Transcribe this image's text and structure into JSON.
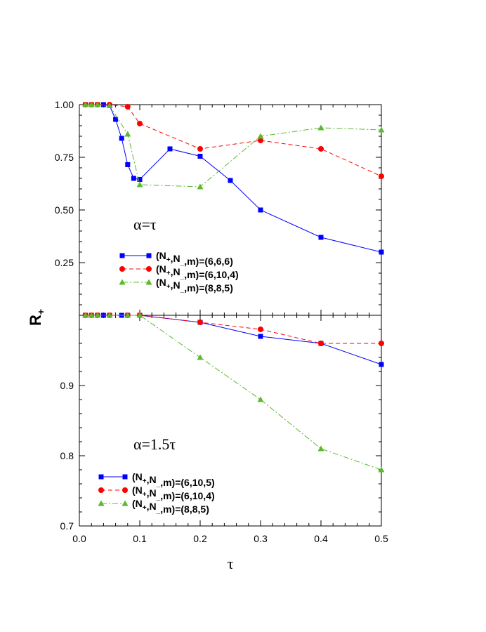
{
  "chart_data": {
    "type": "line",
    "ylabel": "R+",
    "xlabel": "τ",
    "xlim": [
      0.0,
      0.5
    ],
    "x_ticks": [
      "0.0",
      "0.1",
      "0.2",
      "0.3",
      "0.4",
      "0.5"
    ],
    "panels": [
      {
        "annotation": "α=τ",
        "ylim": [
          0.0,
          1.0
        ],
        "y_ticks": [
          "0.25",
          "0.50",
          "0.75",
          "1.00"
        ],
        "legend_position": "lower-left",
        "series": [
          {
            "name": "(N+,N_,m)=(6,6,6)",
            "color": "#0000ff",
            "marker": "square",
            "dash": "solid",
            "x": [
              0.01,
              0.02,
              0.03,
              0.04,
              0.05,
              0.06,
              0.07,
              0.08,
              0.09,
              0.1,
              0.15,
              0.2,
              0.25,
              0.3,
              0.4,
              0.5
            ],
            "y": [
              1.0,
              1.0,
              1.0,
              1.0,
              0.995,
              0.93,
              0.84,
              0.715,
              0.65,
              0.645,
              0.79,
              0.755,
              0.64,
              0.5,
              0.37,
              0.3
            ]
          },
          {
            "name": "(N+,N_,m)=(6,10,4)",
            "color": "#ff0000",
            "marker": "circle",
            "dash": "dashed",
            "x": [
              0.01,
              0.02,
              0.03,
              0.05,
              0.08,
              0.1,
              0.2,
              0.3,
              0.4,
              0.5
            ],
            "y": [
              1.0,
              1.0,
              1.0,
              1.0,
              0.99,
              0.91,
              0.79,
              0.83,
              0.79,
              0.66
            ]
          },
          {
            "name": "(N+,N_,m)=(8,8,5)",
            "color": "#5cb82e",
            "marker": "triangle",
            "dash": "dashdot",
            "x": [
              0.01,
              0.02,
              0.03,
              0.05,
              0.08,
              0.1,
              0.2,
              0.3,
              0.4,
              0.5
            ],
            "y": [
              1.0,
              1.0,
              1.0,
              0.995,
              0.86,
              0.62,
              0.61,
              0.85,
              0.89,
              0.88
            ]
          }
        ]
      },
      {
        "annotation": "α=1.5τ",
        "ylim": [
          0.7,
          1.0
        ],
        "y_ticks": [
          "0.7",
          "0.8",
          "0.9"
        ],
        "legend_position": "lower-left",
        "series": [
          {
            "name": "(N+,N_,m)=(6,10,5)",
            "color": "#0000ff",
            "marker": "square",
            "dash": "solid",
            "x": [
              0.01,
              0.02,
              0.03,
              0.04,
              0.05,
              0.07,
              0.08,
              0.1,
              0.2,
              0.3,
              0.4,
              0.5
            ],
            "y": [
              1.0,
              1.0,
              1.0,
              1.0,
              1.0,
              1.0,
              1.0,
              1.0,
              0.99,
              0.97,
              0.96,
              0.93
            ]
          },
          {
            "name": "(N+,N_,m)=(6,10,4)",
            "color": "#ff0000",
            "marker": "circle",
            "dash": "dashed",
            "x": [
              0.01,
              0.02,
              0.03,
              0.05,
              0.08,
              0.1,
              0.2,
              0.3,
              0.4,
              0.5
            ],
            "y": [
              1.0,
              1.0,
              1.0,
              1.0,
              1.0,
              1.0,
              0.99,
              0.98,
              0.96,
              0.96
            ]
          },
          {
            "name": "(N+,N_,m)=(8,8,5)",
            "color": "#5cb82e",
            "marker": "triangle",
            "dash": "dashdot",
            "x": [
              0.01,
              0.02,
              0.03,
              0.05,
              0.08,
              0.1,
              0.2,
              0.3,
              0.4,
              0.5
            ],
            "y": [
              1.0,
              1.0,
              1.0,
              1.0,
              1.0,
              1.0,
              0.94,
              0.88,
              0.81,
              0.78
            ]
          }
        ]
      }
    ]
  }
}
